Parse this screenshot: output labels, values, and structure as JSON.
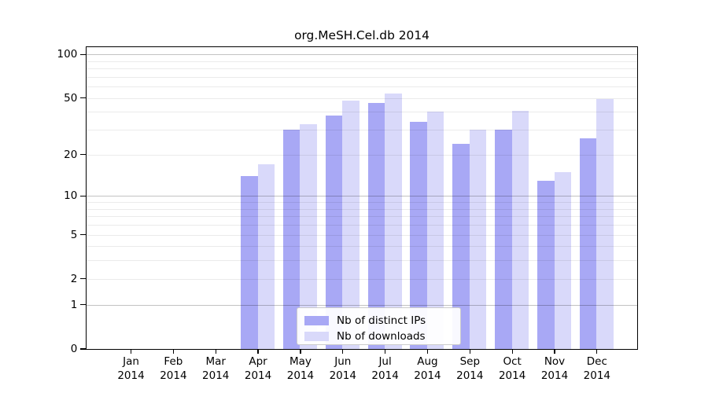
{
  "chart_data": {
    "type": "bar",
    "title": "org.MeSH.Cel.db 2014",
    "categories": [
      "Jan",
      "Feb",
      "Mar",
      "Apr",
      "May",
      "Jun",
      "Jul",
      "Aug",
      "Sep",
      "Oct",
      "Nov",
      "Dec"
    ],
    "category_sublabel": "2014",
    "series": [
      {
        "name": "Nb of distinct IPs",
        "color": "#a8a8f5",
        "values": [
          0,
          0,
          0,
          14,
          30,
          38,
          46,
          34,
          24,
          30,
          13,
          26
        ]
      },
      {
        "name": "Nb of downloads",
        "color": "#d9d9fa",
        "values": [
          0,
          0,
          0,
          17,
          33,
          48,
          54,
          40,
          30,
          41,
          15,
          49
        ]
      }
    ],
    "y_axis": {
      "scale": "log1p",
      "ticks": [
        0,
        1,
        2,
        5,
        10,
        20,
        50,
        100
      ],
      "major_gridlines": [
        1,
        10,
        100
      ],
      "minor_gridlines": [
        2,
        3,
        4,
        5,
        6,
        7,
        8,
        9,
        20,
        30,
        40,
        50,
        60,
        70,
        80,
        90
      ],
      "min": 0,
      "max": 100
    },
    "grid": true,
    "legend_position": "lower center",
    "colors": {
      "grid_minor": "rgba(0,0,0,0.08)",
      "grid_major": "rgba(0,0,0,0.24)",
      "axis": "#000000",
      "text": "#000000",
      "background": "#ffffff"
    }
  }
}
